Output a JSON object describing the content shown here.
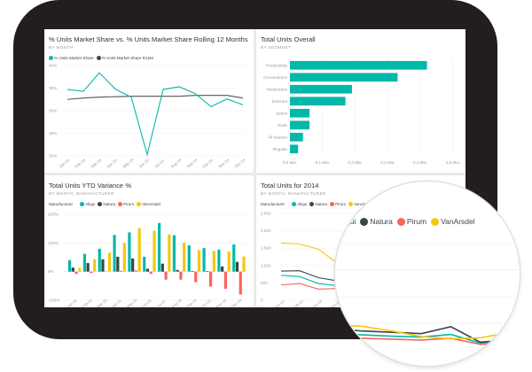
{
  "colors": {
    "teal": "#01b8aa",
    "dark": "#374649",
    "red": "#fd625e",
    "yellow": "#f2c80f",
    "frame": "#221e1f"
  },
  "panels": {
    "market_share": {
      "title": "% Units Market Share vs. % Units Market Share Rolling 12 Months",
      "subtitle": "BY MONTH",
      "legend": [
        "% Units Market Share",
        "% Units Market Share R12M"
      ]
    },
    "total_units_overall": {
      "title": "Total Units Overall",
      "subtitle": "BY SEGMENT"
    },
    "ytd_variance": {
      "title": "Total Units YTD Variance %",
      "subtitle": "BY MONTH, MANUFACTURER",
      "legend_label": "Manufacturer",
      "legend": [
        "Aliqui",
        "Natura",
        "Pirum",
        "VanArsdel"
      ]
    },
    "units_2014": {
      "title": "Total Units for 2014",
      "subtitle": "BY MONTH, MANUFACTURER",
      "legend_label": "Manufacturer",
      "legend": [
        "Aliqui",
        "Natura",
        "Pirum",
        "VanArsdel"
      ]
    }
  },
  "magnifier": {
    "subtitle_fragment": "ER",
    "legend": [
      "qui",
      "Natura",
      "Pirum",
      "VanArsdel"
    ]
  },
  "chart_data": [
    {
      "type": "line",
      "title": "% Units Market Share vs. % Units Market Share Rolling 12 Months",
      "x": [
        "Jan-14",
        "Feb-14",
        "Mar-14",
        "Apr-14",
        "May-14",
        "Jun-14",
        "Jul-14",
        "Aug-14",
        "Sep-14",
        "Oct-14",
        "Nov-14",
        "Dec-14"
      ],
      "yticks": [
        "40%",
        "35%",
        "30%",
        "25%",
        "20%"
      ],
      "ylim": [
        20,
        40
      ],
      "series": [
        {
          "name": "% Units Market Share",
          "values": [
            34.7,
            34.3,
            38.4,
            34.8,
            33.0,
            20.3,
            34.7,
            35.3,
            33.8,
            30.9,
            32.6,
            31.3
          ]
        },
        {
          "name": "% Units Market Share R12M",
          "values": [
            32.5,
            32.8,
            33.0,
            33.1,
            33.2,
            33.2,
            33.2,
            33.2,
            33.4,
            33.4,
            33.4,
            32.8
          ]
        }
      ]
    },
    {
      "type": "bar",
      "title": "Total Units Overall",
      "categories": [
        "Productivity",
        "Convenience",
        "Moderation",
        "Extreme",
        "Select",
        "Youth",
        "All Season",
        "Regular"
      ],
      "values": [
        0.42,
        0.33,
        0.19,
        0.17,
        0.06,
        0.06,
        0.04,
        0.025
      ],
      "xticks": [
        "0,0 Mio.",
        "0,1 Mio.",
        "0,2 Mio.",
        "0,3 Mio.",
        "0,4 Mio.",
        "0,5 Mio."
      ],
      "xlim": [
        0,
        0.5
      ]
    },
    {
      "type": "bar",
      "title": "Total Units YTD Variance %",
      "x": [
        "Jan-14",
        "Feb-14",
        "Mar-14",
        "Apr-14",
        "May-14",
        "Jun-14",
        "Jul-14",
        "Aug-14",
        "Sep-14",
        "Oct-14",
        "Nov-14",
        "Dec-14"
      ],
      "yticks": [
        "200%",
        "100%",
        "0%",
        "-100%"
      ],
      "ylim": [
        -100,
        200
      ],
      "series": [
        {
          "name": "Aliqui",
          "values": [
            40,
            62,
            80,
            128,
            137,
            52,
            170,
            127,
            92,
            82,
            77,
            95
          ]
        },
        {
          "name": "Natura",
          "values": [
            14,
            30,
            43,
            52,
            46,
            10,
            28,
            6,
            2,
            2,
            18,
            34
          ]
        },
        {
          "name": "Pirum",
          "values": [
            -8,
            -5,
            0,
            3,
            4,
            -8,
            -28,
            -28,
            -37,
            -52,
            -60,
            -80
          ]
        },
        {
          "name": "VanArsdel",
          "values": [
            13,
            43,
            66,
            100,
            152,
            143,
            130,
            101,
            75,
            72,
            70,
            53
          ]
        }
      ]
    },
    {
      "type": "line",
      "title": "Total Units for 2014",
      "x": [
        "Jan-14",
        "Feb-14",
        "Mar-14",
        "Apr-14",
        "May-14",
        "Jun-14",
        "Jul-14",
        "Aug-14",
        "Sep-14",
        "Oct-14",
        "Nov-14",
        "Dec-14"
      ],
      "yticks": [
        "2.500",
        "2.000",
        "1.500",
        "1.000",
        "500",
        "0"
      ],
      "ylim": [
        0,
        2500
      ],
      "series": [
        {
          "name": "Aliqui",
          "values": [
            720,
            680,
            480,
            420,
            400,
            370,
            340,
            320,
            380,
            180,
            240,
            280
          ]
        },
        {
          "name": "Natura",
          "values": [
            840,
            850,
            650,
            560,
            510,
            460,
            430,
            400,
            560,
            200,
            250,
            330
          ]
        },
        {
          "name": "Pirum",
          "values": [
            440,
            480,
            320,
            340,
            310,
            290,
            270,
            250,
            290,
            150,
            180,
            200
          ]
        },
        {
          "name": "VanArsdel",
          "values": [
            1650,
            1620,
            1470,
            1070,
            610,
            570,
            460,
            330,
            280,
            300,
            430,
            830
          ]
        }
      ]
    }
  ]
}
